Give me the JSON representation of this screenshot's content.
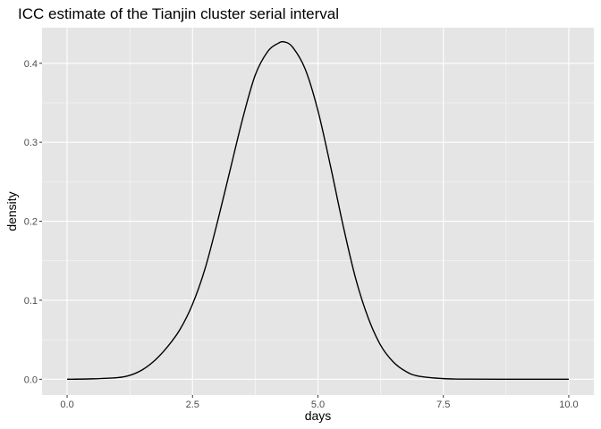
{
  "chart_data": {
    "type": "line",
    "title": "ICC estimate of the Tianjin cluster serial interval",
    "xlabel": "days",
    "ylabel": "density",
    "xlim": [
      -0.5,
      10.5
    ],
    "ylim": [
      -0.02,
      0.445
    ],
    "x_ticks": [
      0.0,
      2.5,
      5.0,
      7.5,
      10.0
    ],
    "x_tick_labels": [
      "0.0",
      "2.5",
      "5.0",
      "7.5",
      "10.0"
    ],
    "y_ticks": [
      0.0,
      0.1,
      0.2,
      0.3,
      0.4
    ],
    "y_tick_labels": [
      "0.0",
      "0.1",
      "0.2",
      "0.3",
      "0.4"
    ],
    "grid": true,
    "background": "#e5e5e5",
    "grid_color": "#ffffff",
    "line_color": "#000000",
    "series": [
      {
        "x": [
          0.0,
          0.5,
          1.0,
          1.25,
          1.5,
          1.75,
          2.0,
          2.25,
          2.5,
          2.75,
          3.0,
          3.25,
          3.5,
          3.75,
          4.0,
          4.2,
          4.33,
          4.5,
          4.75,
          5.0,
          5.25,
          5.5,
          5.75,
          6.0,
          6.25,
          6.5,
          6.75,
          7.0,
          7.5,
          8.0,
          9.0,
          10.0
        ],
        "y": [
          0.0,
          0.0005,
          0.002,
          0.005,
          0.012,
          0.024,
          0.041,
          0.063,
          0.095,
          0.14,
          0.2,
          0.265,
          0.33,
          0.385,
          0.415,
          0.425,
          0.427,
          0.42,
          0.392,
          0.34,
          0.27,
          0.195,
          0.128,
          0.078,
          0.043,
          0.022,
          0.01,
          0.004,
          0.0008,
          0.0001,
          0.0,
          0.0
        ]
      }
    ]
  }
}
